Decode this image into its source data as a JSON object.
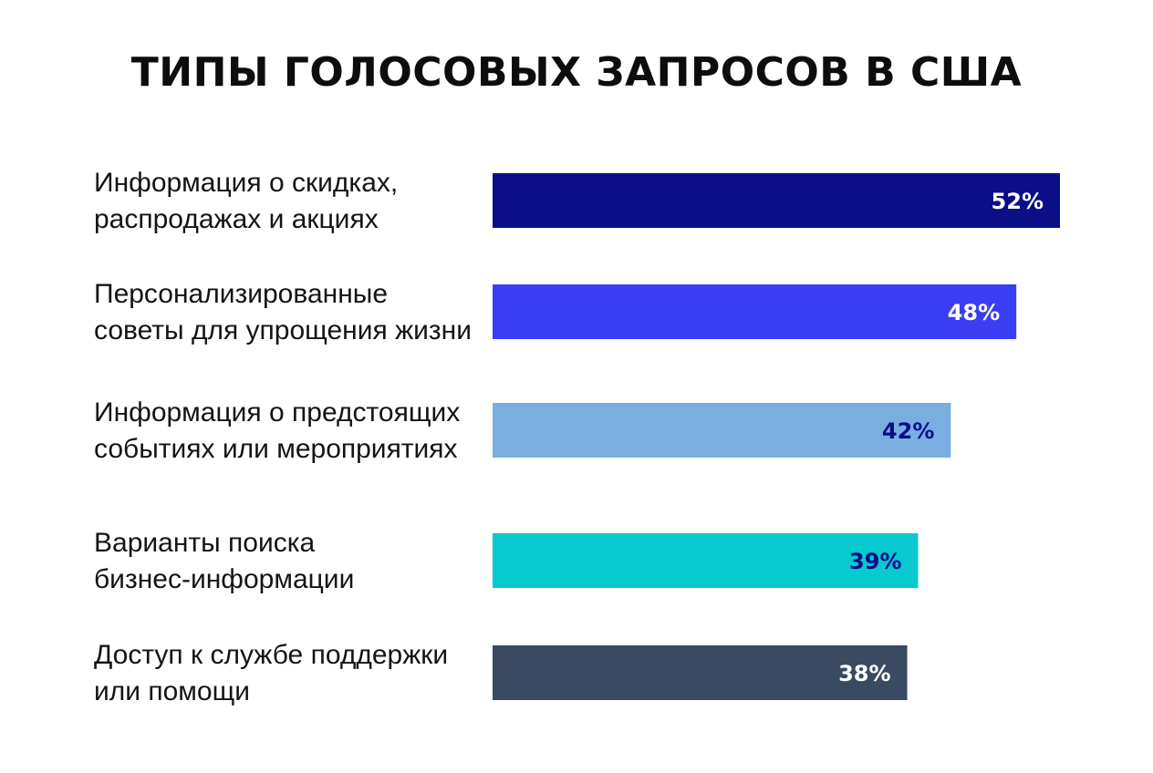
{
  "chart_data": {
    "type": "bar",
    "orientation": "horizontal",
    "title": "ТИПЫ ГОЛОСОВЫХ ЗАПРОСОВ В США",
    "categories": [
      [
        "Информация о скидках,",
        "распродажах и акциях"
      ],
      [
        "Персонализированные",
        "советы для упрощения жизни"
      ],
      [
        "Информация о предстоящих",
        "событиях или мероприятиях"
      ],
      [
        "Варианты поиска",
        "бизнес-информации"
      ],
      [
        "Доступ к службе поддержки",
        "или помощи"
      ]
    ],
    "values": [
      52,
      48,
      42,
      39,
      38
    ],
    "value_labels": [
      "52%",
      "48%",
      "42%",
      "39%",
      "38%"
    ],
    "bar_colors": [
      "#0a0f87",
      "#3a3df2",
      "#7aaee0",
      "#08c8d0",
      "#3a4a63"
    ],
    "value_label_colors": [
      "#ffffff",
      "#ffffff",
      "#0a0f87",
      "#0a0f87",
      "#ffffff"
    ],
    "grid": false,
    "legend": "none"
  }
}
